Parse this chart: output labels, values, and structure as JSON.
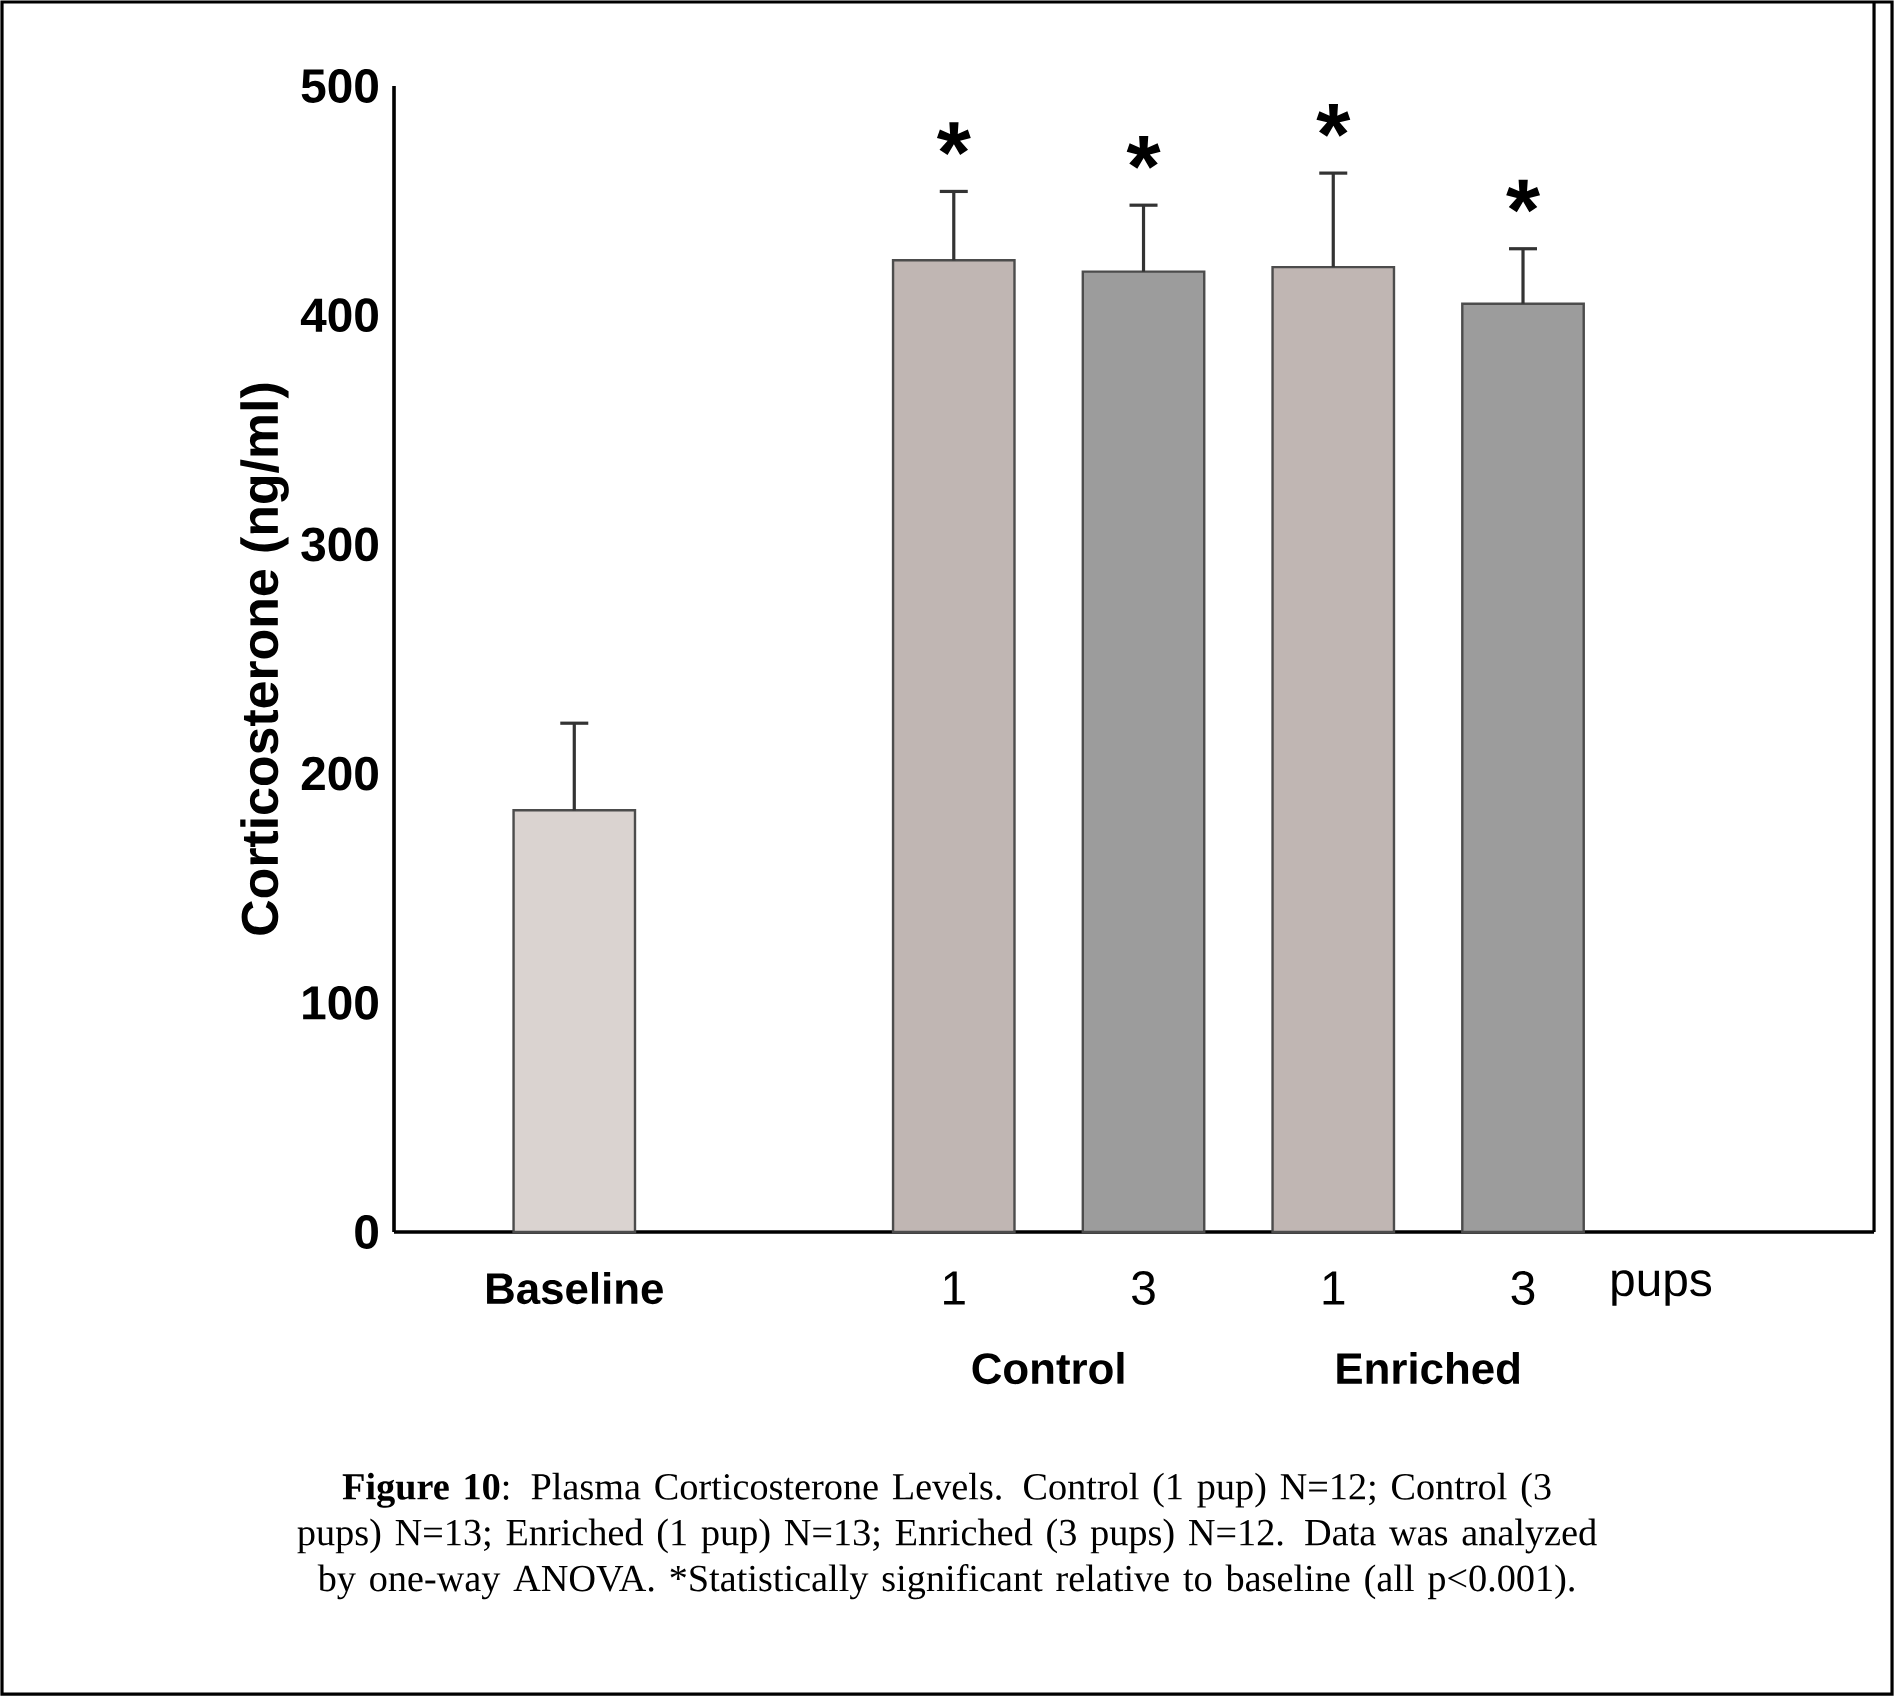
{
  "chart_data": {
    "type": "bar",
    "ylabel": "Corticosterone (ng/ml)",
    "xlabel": "pups",
    "categories": [
      "Baseline",
      "1",
      "3",
      "1",
      "3"
    ],
    "values": [
      184,
      424,
      419,
      421,
      405
    ],
    "errors": [
      38,
      30,
      29,
      41,
      24
    ],
    "value_labels": [
      null,
      "*",
      "*",
      "*",
      "*"
    ],
    "colors": [
      "#dad3d0",
      "#c0b6b3",
      "#9c9c9c",
      "#c0b6b3",
      "#9c9c9c"
    ],
    "ylim": [
      0,
      500
    ],
    "yticks": [
      0,
      100,
      200,
      300,
      400,
      500
    ],
    "annotations": [
      "Control",
      "Enriched",
      "**Figure 10**: Plasma Corticosterone Levels.  Control (1 pup) N=12; Control (3 pups) N=13; Enriched (1 pup) N=13; Enriched (3 pups) N=12. Data was analyzed by one-way ANOVA. *Statistically significant relative to baseline (all p<0.001)."
    ]
  }
}
